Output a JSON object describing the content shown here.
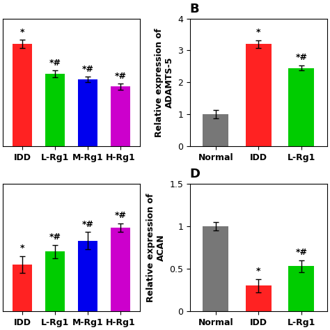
{
  "chart_data": [
    {
      "type": "bar",
      "categories": [
        "IDD",
        "L-Rg1",
        "M-Rg1",
        "H-Rg1"
      ],
      "values": [
        3.6,
        2.55,
        2.35,
        2.1
      ],
      "errors": [
        0.15,
        0.12,
        0.1,
        0.1
      ],
      "colors": [
        "#FF2222",
        "#00CC00",
        "#0000EE",
        "#CC00CC"
      ],
      "annotations": [
        "*",
        "*#",
        "*#",
        "*#"
      ],
      "ylim": [
        0,
        4.5
      ],
      "tick_labels": "x"
    },
    {
      "type": "bar",
      "title": "B",
      "categories": [
        "Normal",
        "IDD",
        "L-Rg1"
      ],
      "values": [
        1.0,
        3.2,
        2.45
      ],
      "errors": [
        0.13,
        0.12,
        0.08
      ],
      "colors": [
        "#777777",
        "#FF2222",
        "#00CC00"
      ],
      "annotations": [
        null,
        "*",
        "*#"
      ],
      "y_label": "Relative expression of\nADAMTS-5",
      "ylim": [
        0,
        4
      ],
      "yticks": [
        0,
        1,
        2,
        3,
        4
      ]
    },
    {
      "type": "bar",
      "categories": [
        "IDD",
        "L-Rg1",
        "M-Rg1",
        "H-Rg1"
      ],
      "values": [
        0.55,
        0.7,
        0.83,
        0.98
      ],
      "errors": [
        0.1,
        0.08,
        0.1,
        0.05
      ],
      "colors": [
        "#FF2222",
        "#00CC00",
        "#0000EE",
        "#CC00CC"
      ],
      "annotations": [
        "*",
        "*#",
        "*#",
        "*#"
      ],
      "ylim": [
        0,
        1.5
      ],
      "tick_labels": "x"
    },
    {
      "type": "bar",
      "title": "D",
      "categories": [
        "Normal",
        "IDD",
        "L-Rg1"
      ],
      "values": [
        1.0,
        0.3,
        0.53
      ],
      "errors": [
        0.05,
        0.08,
        0.07
      ],
      "colors": [
        "#777777",
        "#FF2222",
        "#00CC00"
      ],
      "annotations": [
        null,
        "*",
        "*#"
      ],
      "y_label": "Relative expression of\nACAN",
      "ylim": [
        0,
        1.5
      ],
      "yticks": [
        0,
        0.5,
        1,
        1.5
      ]
    }
  ]
}
